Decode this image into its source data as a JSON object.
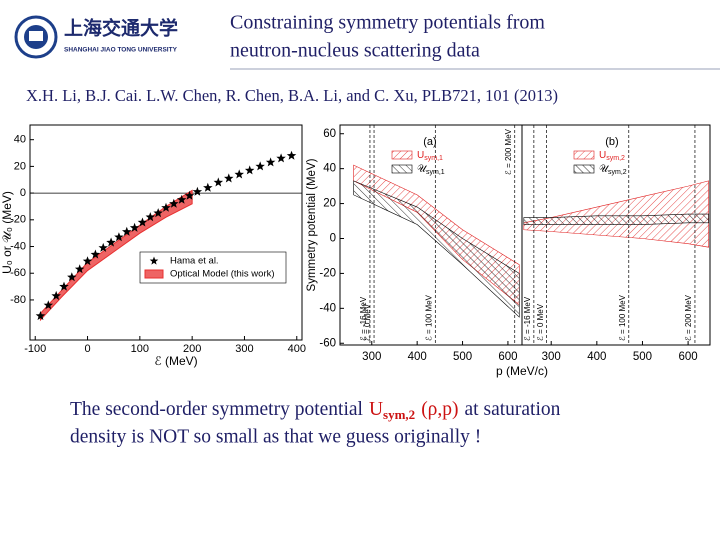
{
  "header": {
    "logo_text": "上海交通大学",
    "logo_subtext": "SHANGHAI JIAO TONG UNIVERSITY",
    "title_lines": [
      "Constraining symmetry potentials from",
      "neutron-nucleus scattering data"
    ]
  },
  "citation": "X.H. Li, B.J. Cai. L.W. Chen, R. Chen, B.A. Li, and C. Xu, PLB721, 101 (2013)",
  "chart_data": [
    {
      "type": "scatter",
      "xlabel": "ℰ (MeV)",
      "ylabel": "U₀ or 𝒰₀ (MeV)",
      "xlim": [
        -110,
        410
      ],
      "ylim": [
        -110,
        51
      ],
      "xticks": [
        -100,
        0,
        100,
        200,
        300,
        400
      ],
      "yticks": [
        -80,
        -60,
        -40,
        -20,
        0,
        20,
        40
      ],
      "hlines": [
        0
      ],
      "series": [
        {
          "name": "Hama et al.",
          "marker": "star",
          "color": "#000000",
          "x": [
            -90,
            -75,
            -60,
            -45,
            -30,
            -15,
            0,
            15,
            30,
            45,
            60,
            75,
            90,
            105,
            120,
            135,
            150,
            165,
            180,
            195,
            210,
            230,
            250,
            270,
            290,
            310,
            330,
            350,
            370,
            390
          ],
          "y": [
            -92,
            -84,
            -77,
            -70,
            -63,
            -57,
            -51,
            -46,
            -41,
            -37,
            -33,
            -29,
            -26,
            -22,
            -18,
            -15,
            -11,
            -8,
            -5,
            -2,
            1,
            4,
            8,
            11,
            14,
            17,
            20,
            23,
            26,
            28
          ]
        },
        {
          "name": "Optical Model (this work)",
          "marker": "band",
          "color": "#e83030",
          "x": [
            -90,
            -50,
            0,
            50,
            100,
            150,
            200
          ],
          "lower": [
            -95,
            -78,
            -58,
            -44,
            -30,
            -18,
            -8
          ],
          "upper": [
            -90,
            -73,
            -52,
            -38,
            -24,
            -10,
            2
          ]
        }
      ]
    },
    {
      "type": "area",
      "xlabel": "p (MeV/c)",
      "ylabel": "Symmetry potential (MeV)",
      "ylim": [
        -61,
        65
      ],
      "yticks": [
        -60,
        -40,
        -20,
        0,
        20,
        40,
        60
      ],
      "panels": [
        {
          "label": "(a)",
          "xlim": [
            230,
            631
          ],
          "xticks": [
            300,
            400,
            500,
            600
          ],
          "series": [
            {
              "name": "U",
              "name_sub": "sym,1",
              "color": "#e02020",
              "x": [
                260,
                400,
                500,
                625
              ],
              "upper": [
                42,
                25,
                5,
                -15
              ],
              "lower": [
                33,
                15,
                -12,
                -38
              ]
            },
            {
              "name": "𝒰",
              "name_sub": "sym,1",
              "color": "#000000",
              "x": [
                260,
                400,
                500,
                625
              ],
              "upper": [
                33,
                18,
                0,
                -20
              ],
              "lower": [
                25,
                8,
                -15,
                -45
              ]
            }
          ],
          "vlines": [
            {
              "x": 296,
              "label": "ℰ = -16 MeV",
              "label_pos": "bottom"
            },
            {
              "x": 305,
              "label": "ℰ = 0 MeV",
              "label_pos": "bottom"
            },
            {
              "x": 440,
              "label": "ℰ = 100 MeV",
              "label_pos": "bottom"
            },
            {
              "x": 615,
              "label": "ℰ = 200 MeV",
              "label_pos": "top"
            }
          ]
        },
        {
          "label": "(b)",
          "xlim": [
            236,
            648
          ],
          "xticks": [
            300,
            400,
            500,
            600
          ],
          "series": [
            {
              "name": "U",
              "name_sub": "sym,2",
              "color": "#e02020",
              "x": [
                240,
                300,
                400,
                500,
                600,
                645
              ],
              "upper": [
                9,
                12,
                18,
                24,
                30,
                33
              ],
              "lower": [
                5,
                4,
                2,
                0,
                -3,
                -5
              ]
            },
            {
              "name": "𝒰",
              "name_sub": "sym,2",
              "color": "#000000",
              "x": [
                240,
                300,
                400,
                500,
                600,
                645
              ],
              "upper": [
                12,
                12,
                13,
                13,
                14,
                14
              ],
              "lower": [
                8,
                8,
                8,
                8,
                9,
                9
              ]
            }
          ],
          "vlines": [
            {
              "x": 262,
              "label": "ℰ = -16 MeV",
              "label_pos": "bottom"
            },
            {
              "x": 290,
              "label": "ℰ = 0 MeV",
              "label_pos": "bottom"
            },
            {
              "x": 470,
              "label": "ℰ = 100 MeV",
              "label_pos": "bottom"
            },
            {
              "x": 615,
              "label": "ℰ = 200 MeV",
              "label_pos": "bottom"
            }
          ]
        }
      ]
    }
  ],
  "conclusion": {
    "line1_start": "The second-order symmetry potential",
    "symbol": "U",
    "symbol_sub": "sym,2",
    "symbol_args": "(ρ,p)",
    "line1_end": "at saturation",
    "line2": "density is NOT so small as that we guess originally !"
  }
}
